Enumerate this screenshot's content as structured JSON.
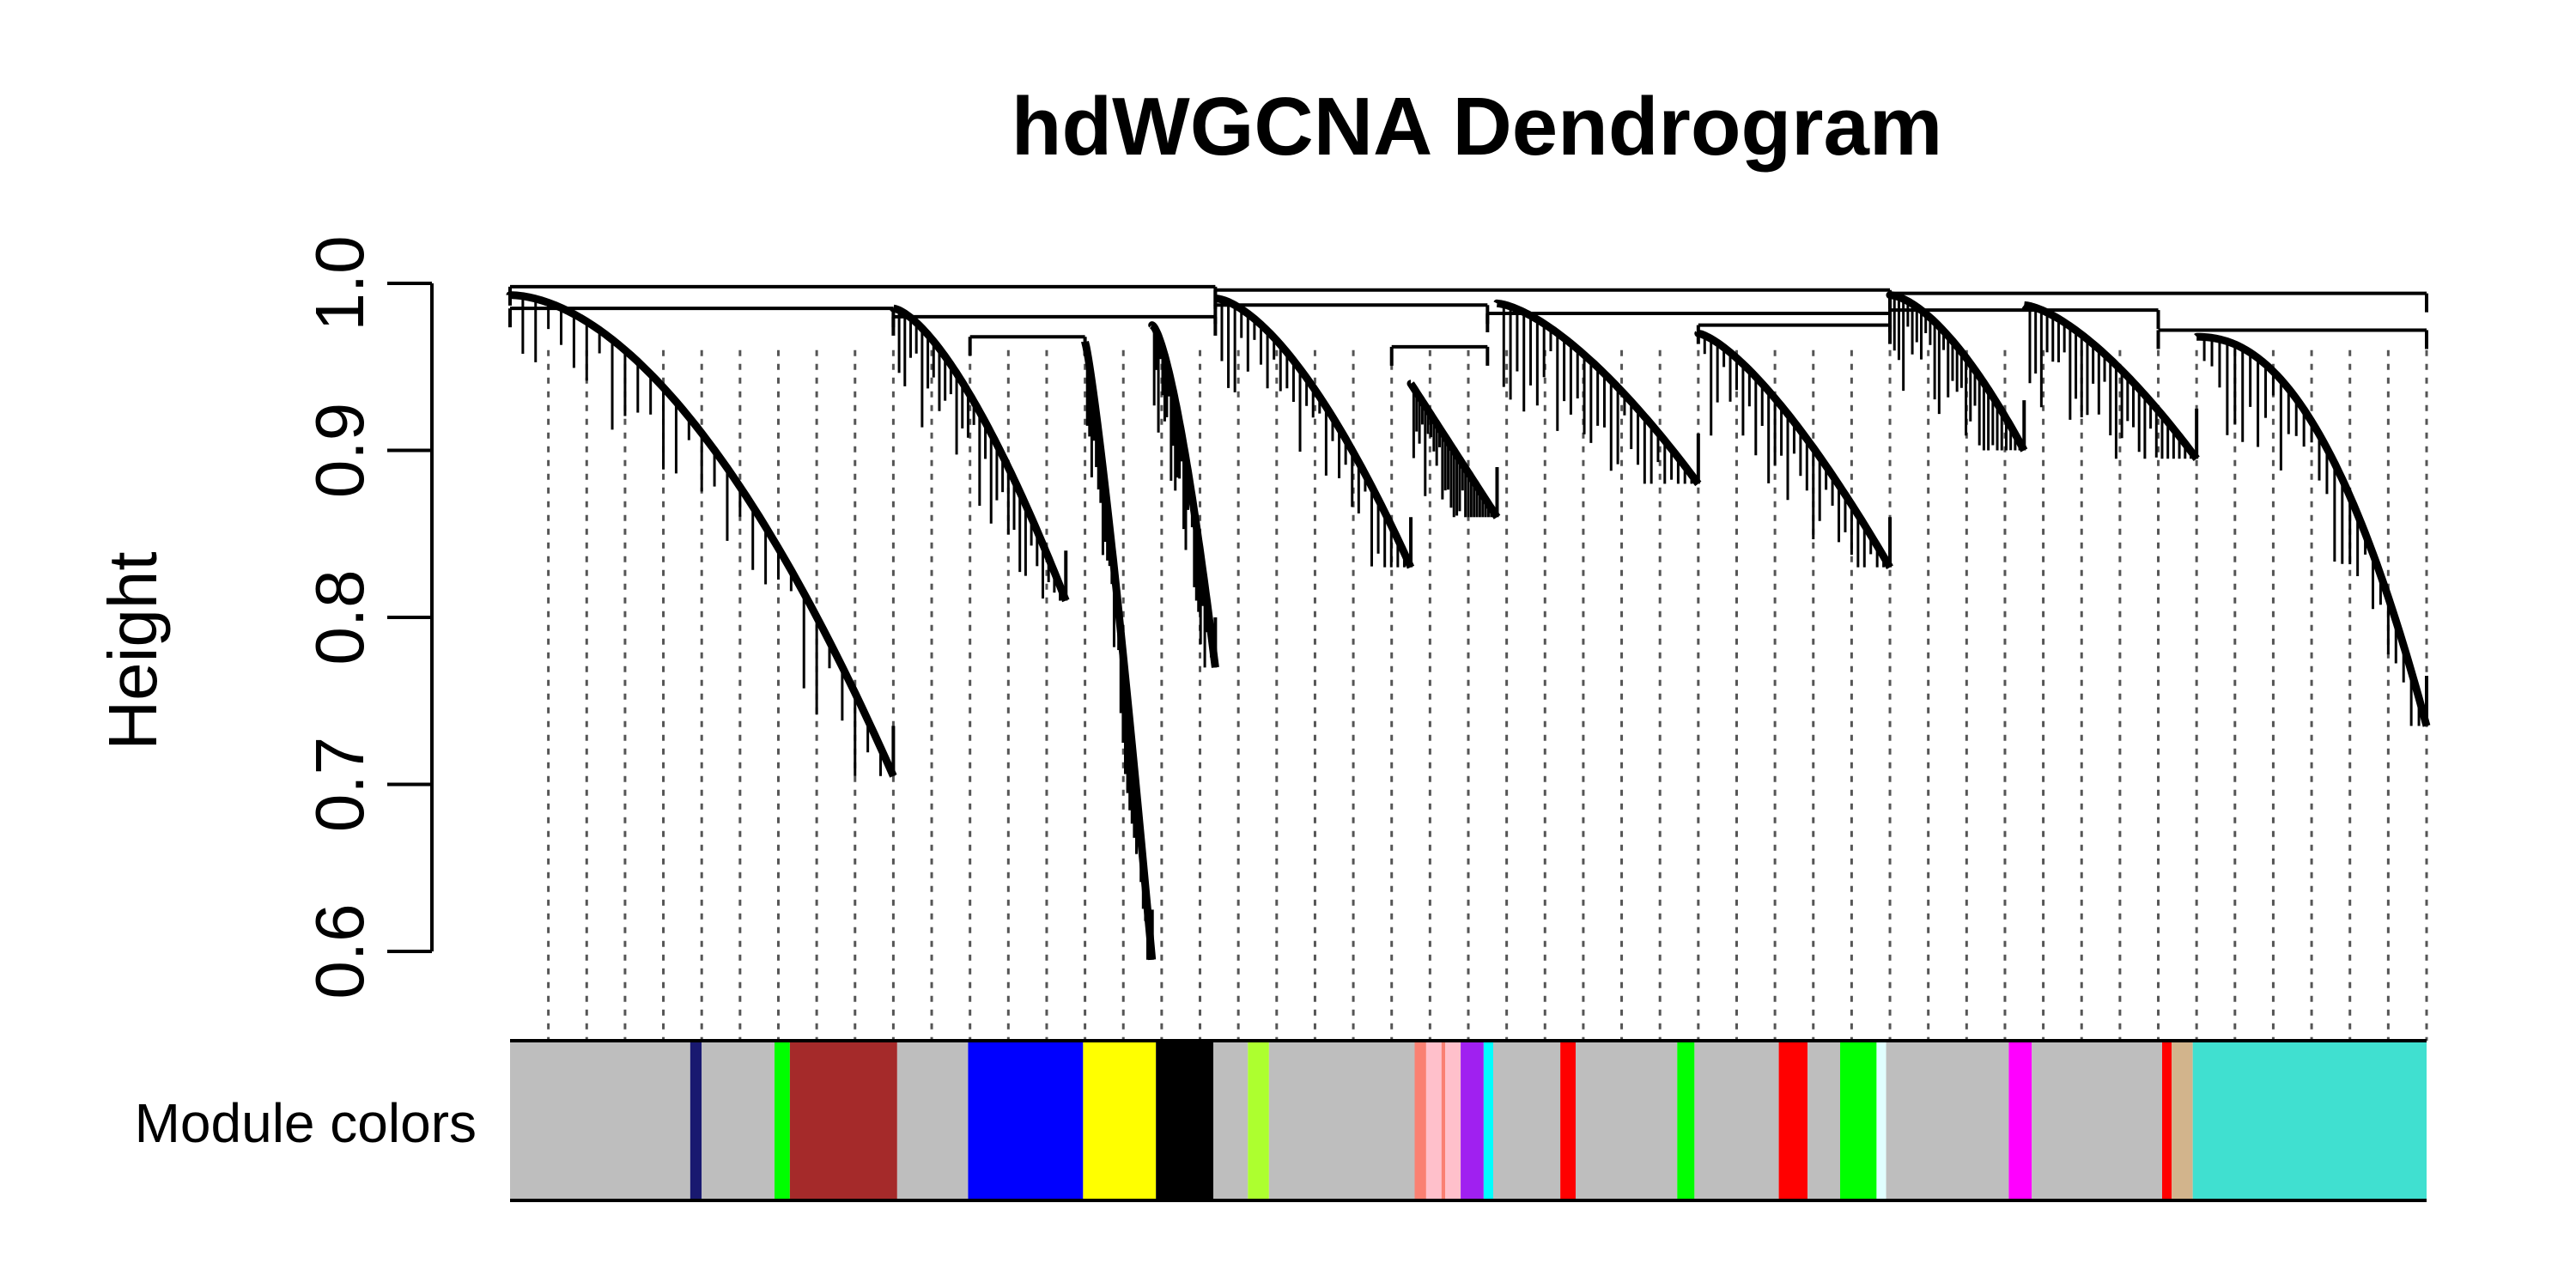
{
  "chart_data": {
    "type": "dendrogram",
    "title": "hdWGCNA Dendrogram",
    "ylabel": "Height",
    "xlabel": "",
    "ylim": [
      0.6,
      1.0
    ],
    "yticks": [
      0.6,
      0.7,
      0.8,
      0.9,
      1.0
    ],
    "ytick_labels": [
      "0.6",
      "0.7",
      "0.8",
      "0.9",
      "1.0"
    ],
    "grid": false,
    "branch_color": "#000000",
    "colors_row_label": "Module colors",
    "module_colors": [
      {
        "name": "grey",
        "color": "#BEBEBE",
        "from": 0.0,
        "to": 0.094
      },
      {
        "name": "midnightblue",
        "color": "#191970",
        "from": 0.094,
        "to": 0.1
      },
      {
        "name": "grey",
        "color": "#BEBEBE",
        "from": 0.1,
        "to": 0.138
      },
      {
        "name": "green",
        "color": "#00FF00",
        "from": 0.138,
        "to": 0.146
      },
      {
        "name": "brown",
        "color": "#A52A2A",
        "from": 0.146,
        "to": 0.202
      },
      {
        "name": "grey",
        "color": "#BEBEBE",
        "from": 0.202,
        "to": 0.239
      },
      {
        "name": "blue",
        "color": "#0000FF",
        "from": 0.239,
        "to": 0.299
      },
      {
        "name": "yellow",
        "color": "#FFFF00",
        "from": 0.299,
        "to": 0.337
      },
      {
        "name": "black",
        "color": "#000000",
        "from": 0.337,
        "to": 0.367
      },
      {
        "name": "grey",
        "color": "#BEBEBE",
        "from": 0.367,
        "to": 0.385
      },
      {
        "name": "greenyellow",
        "color": "#ADFF2F",
        "from": 0.385,
        "to": 0.396
      },
      {
        "name": "grey",
        "color": "#BEBEBE",
        "from": 0.396,
        "to": 0.472
      },
      {
        "name": "salmon",
        "color": "#FA8072",
        "from": 0.472,
        "to": 0.478
      },
      {
        "name": "pink",
        "color": "#FFC0CB",
        "from": 0.478,
        "to": 0.486
      },
      {
        "name": "salmon",
        "color": "#FA8072",
        "from": 0.486,
        "to": 0.488
      },
      {
        "name": "pink",
        "color": "#FFC0CB",
        "from": 0.488,
        "to": 0.496
      },
      {
        "name": "purple",
        "color": "#A020F0",
        "from": 0.496,
        "to": 0.508
      },
      {
        "name": "cyan",
        "color": "#00FFFF",
        "from": 0.508,
        "to": 0.513
      },
      {
        "name": "grey",
        "color": "#BEBEBE",
        "from": 0.513,
        "to": 0.548
      },
      {
        "name": "red",
        "color": "#FF0000",
        "from": 0.548,
        "to": 0.556
      },
      {
        "name": "grey",
        "color": "#BEBEBE",
        "from": 0.556,
        "to": 0.609
      },
      {
        "name": "green",
        "color": "#00FF00",
        "from": 0.609,
        "to": 0.618
      },
      {
        "name": "grey",
        "color": "#BEBEBE",
        "from": 0.618,
        "to": 0.662
      },
      {
        "name": "red",
        "color": "#FF0000",
        "from": 0.662,
        "to": 0.677
      },
      {
        "name": "grey",
        "color": "#BEBEBE",
        "from": 0.677,
        "to": 0.694
      },
      {
        "name": "green",
        "color": "#00FF00",
        "from": 0.694,
        "to": 0.713
      },
      {
        "name": "lightcyan",
        "color": "#E0FFFF",
        "from": 0.713,
        "to": 0.718
      },
      {
        "name": "grey",
        "color": "#BEBEBE",
        "from": 0.718,
        "to": 0.782
      },
      {
        "name": "magenta",
        "color": "#FF00FF",
        "from": 0.782,
        "to": 0.794
      },
      {
        "name": "grey",
        "color": "#BEBEBE",
        "from": 0.794,
        "to": 0.862
      },
      {
        "name": "red",
        "color": "#FF0000",
        "from": 0.862,
        "to": 0.867
      },
      {
        "name": "tan",
        "color": "#D2B48C",
        "from": 0.867,
        "to": 0.878
      },
      {
        "name": "turquoise",
        "color": "#40E0D0",
        "from": 0.878,
        "to": 1.0
      }
    ],
    "cut_positions": [
      0.02,
      0.04,
      0.06,
      0.08,
      0.1,
      0.12,
      0.14,
      0.16,
      0.18,
      0.2,
      0.22,
      0.24,
      0.26,
      0.28,
      0.3,
      0.32,
      0.34,
      0.36,
      0.38,
      0.4,
      0.42,
      0.44,
      0.46,
      0.48,
      0.5,
      0.52,
      0.54,
      0.56,
      0.58,
      0.6,
      0.62,
      0.64,
      0.66,
      0.68,
      0.7,
      0.72,
      0.74,
      0.76,
      0.78,
      0.8,
      0.82,
      0.84,
      0.86,
      0.88,
      0.9,
      0.92,
      0.94,
      0.96,
      0.98,
      1.0
    ],
    "merges": [
      {
        "from": 0.0,
        "to": 0.368,
        "height": 0.998
      },
      {
        "from": 0.368,
        "to": 0.72,
        "height": 0.996
      },
      {
        "from": 0.72,
        "to": 1.0,
        "height": 0.994
      },
      {
        "from": 0.0,
        "to": 0.2,
        "height": 0.985
      },
      {
        "from": 0.2,
        "to": 0.368,
        "height": 0.98
      },
      {
        "from": 0.368,
        "to": 0.51,
        "height": 0.987
      },
      {
        "from": 0.51,
        "to": 0.72,
        "height": 0.982
      },
      {
        "from": 0.72,
        "to": 0.86,
        "height": 0.984
      },
      {
        "from": 0.86,
        "to": 1.0,
        "height": 0.972
      },
      {
        "from": 0.24,
        "to": 0.3,
        "height": 0.968
      },
      {
        "from": 0.46,
        "to": 0.51,
        "height": 0.962
      },
      {
        "from": 0.62,
        "to": 0.72,
        "height": 0.975
      }
    ],
    "clusters": [
      {
        "start": 0.0,
        "end": 0.2,
        "top": 0.993,
        "min": 0.705,
        "curve": 1.8
      },
      {
        "start": 0.2,
        "end": 0.29,
        "top": 0.985,
        "min": 0.81,
        "curve": 1.5
      },
      {
        "start": 0.3,
        "end": 0.335,
        "top": 0.965,
        "min": 0.595,
        "curve": 1.2
      },
      {
        "start": 0.335,
        "end": 0.368,
        "top": 0.975,
        "min": 0.77,
        "curve": 1.5
      },
      {
        "start": 0.368,
        "end": 0.47,
        "top": 0.991,
        "min": 0.83,
        "curve": 1.6
      },
      {
        "start": 0.47,
        "end": 0.515,
        "top": 0.94,
        "min": 0.86,
        "curve": 1.0
      },
      {
        "start": 0.515,
        "end": 0.62,
        "top": 0.988,
        "min": 0.88,
        "curve": 1.5
      },
      {
        "start": 0.62,
        "end": 0.72,
        "top": 0.97,
        "min": 0.83,
        "curve": 1.4
      },
      {
        "start": 0.72,
        "end": 0.79,
        "top": 0.993,
        "min": 0.9,
        "curve": 1.6
      },
      {
        "start": 0.79,
        "end": 0.88,
        "top": 0.987,
        "min": 0.895,
        "curve": 1.5
      },
      {
        "start": 0.88,
        "end": 1.0,
        "top": 0.968,
        "min": 0.735,
        "curve": 2.2
      }
    ]
  }
}
